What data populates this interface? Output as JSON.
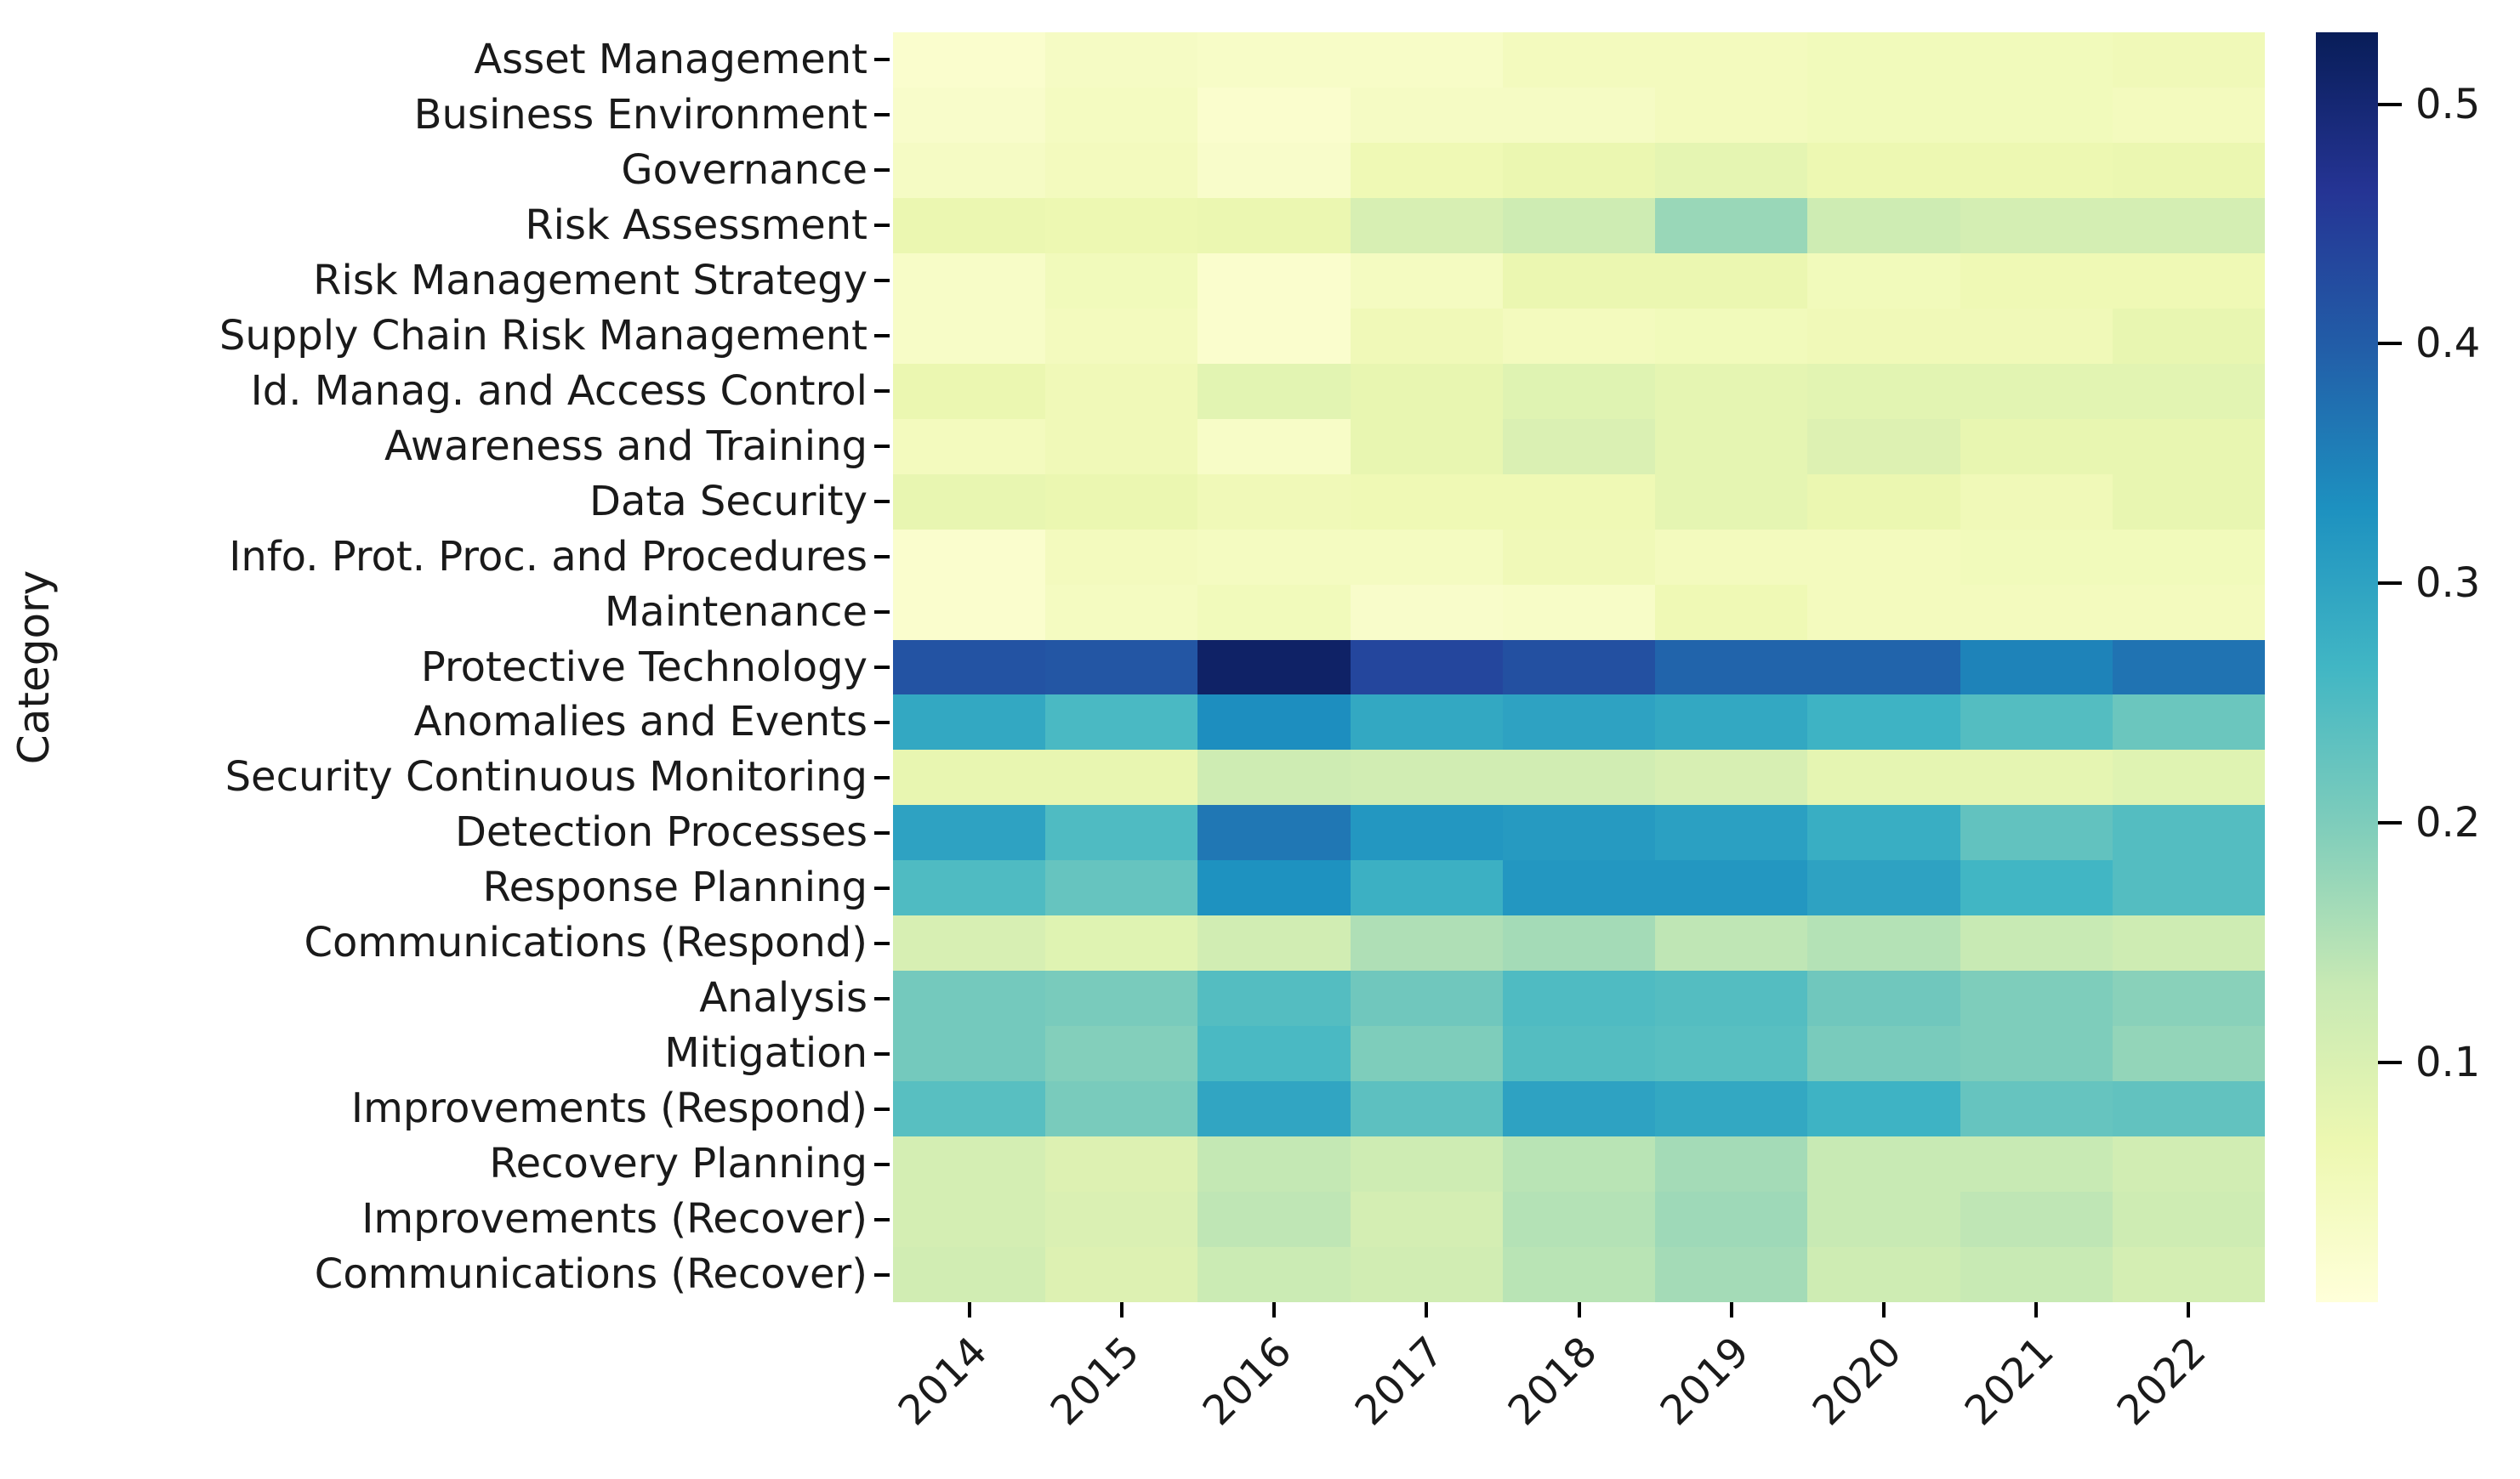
{
  "chart_data": {
    "type": "heatmap",
    "title": "",
    "xlabel": "",
    "ylabel": "Category",
    "grid": false,
    "legend_position": "right-colorbar",
    "colormap": "YlGnBu",
    "colormap_stops": [
      [
        0.0,
        "#ffffd9"
      ],
      [
        0.125,
        "#edf8b1"
      ],
      [
        0.25,
        "#c7e9b4"
      ],
      [
        0.375,
        "#7fcdbb"
      ],
      [
        0.5,
        "#41b6c4"
      ],
      [
        0.625,
        "#1d91c0"
      ],
      [
        0.75,
        "#225ea8"
      ],
      [
        0.875,
        "#253494"
      ],
      [
        1.0,
        "#081d58"
      ]
    ],
    "vmin": 0.0,
    "vmax": 0.53,
    "colorbar_ticks": [
      {
        "label": "0.5",
        "value": 0.5
      },
      {
        "label": "0.4",
        "value": 0.4
      },
      {
        "label": "0.3",
        "value": 0.3
      },
      {
        "label": "0.2",
        "value": 0.2
      },
      {
        "label": "0.1",
        "value": 0.1
      }
    ],
    "x": [
      "2014",
      "2015",
      "2016",
      "2017",
      "2018",
      "2019",
      "2020",
      "2021",
      "2022"
    ],
    "rows": [
      {
        "label": "Asset Management",
        "values": [
          0.02,
          0.035,
          0.03,
          0.03,
          0.045,
          0.045,
          0.05,
          0.05,
          0.055
        ]
      },
      {
        "label": "Business Environment",
        "values": [
          0.025,
          0.04,
          0.02,
          0.035,
          0.035,
          0.045,
          0.05,
          0.05,
          0.045
        ]
      },
      {
        "label": "Governance",
        "values": [
          0.035,
          0.045,
          0.025,
          0.06,
          0.07,
          0.08,
          0.065,
          0.065,
          0.07
        ]
      },
      {
        "label": "Risk Assessment",
        "values": [
          0.07,
          0.065,
          0.07,
          0.105,
          0.12,
          0.175,
          0.12,
          0.11,
          0.11
        ]
      },
      {
        "label": "Risk Management Strategy",
        "values": [
          0.03,
          0.05,
          0.02,
          0.04,
          0.07,
          0.07,
          0.05,
          0.06,
          0.06
        ]
      },
      {
        "label": "Supply Chain Risk Management",
        "values": [
          0.03,
          0.045,
          0.02,
          0.055,
          0.045,
          0.05,
          0.055,
          0.055,
          0.075
        ]
      },
      {
        "label": "Id. Manag. and Access Control",
        "values": [
          0.07,
          0.055,
          0.085,
          0.075,
          0.09,
          0.08,
          0.085,
          0.085,
          0.085
        ]
      },
      {
        "label": "Awareness and Training",
        "values": [
          0.045,
          0.055,
          0.03,
          0.075,
          0.1,
          0.08,
          0.095,
          0.075,
          0.075
        ]
      },
      {
        "label": "Data Security",
        "values": [
          0.075,
          0.07,
          0.055,
          0.06,
          0.06,
          0.08,
          0.07,
          0.055,
          0.075
        ]
      },
      {
        "label": "Info. Prot. Proc. and Procedures",
        "values": [
          0.02,
          0.045,
          0.04,
          0.04,
          0.055,
          0.045,
          0.045,
          0.05,
          0.05
        ]
      },
      {
        "label": "Maintenance",
        "values": [
          0.02,
          0.04,
          0.05,
          0.025,
          0.03,
          0.06,
          0.045,
          0.045,
          0.045
        ]
      },
      {
        "label": "Protective Technology",
        "values": [
          0.415,
          0.41,
          0.515,
          0.435,
          0.42,
          0.39,
          0.39,
          0.35,
          0.37
        ]
      },
      {
        "label": "Anomalies and Events",
        "values": [
          0.29,
          0.255,
          0.335,
          0.29,
          0.3,
          0.29,
          0.27,
          0.245,
          0.22
        ]
      },
      {
        "label": "Security Continuous Monitoring",
        "values": [
          0.075,
          0.075,
          0.12,
          0.115,
          0.115,
          0.105,
          0.08,
          0.08,
          0.09
        ]
      },
      {
        "label": "Detection Processes",
        "values": [
          0.3,
          0.25,
          0.365,
          0.32,
          0.315,
          0.305,
          0.28,
          0.23,
          0.245
        ]
      },
      {
        "label": "Response Planning",
        "values": [
          0.25,
          0.225,
          0.33,
          0.275,
          0.32,
          0.32,
          0.3,
          0.265,
          0.245
        ]
      },
      {
        "label": "Communications (Respond)",
        "values": [
          0.105,
          0.09,
          0.115,
          0.155,
          0.165,
          0.14,
          0.15,
          0.13,
          0.12
        ]
      },
      {
        "label": "Analysis",
        "values": [
          0.21,
          0.205,
          0.245,
          0.215,
          0.25,
          0.245,
          0.215,
          0.2,
          0.19
        ]
      },
      {
        "label": "Mitigation",
        "values": [
          0.21,
          0.195,
          0.255,
          0.2,
          0.245,
          0.24,
          0.205,
          0.2,
          0.18
        ]
      },
      {
        "label": "Improvements (Respond)",
        "values": [
          0.24,
          0.205,
          0.295,
          0.235,
          0.3,
          0.29,
          0.27,
          0.225,
          0.23
        ]
      },
      {
        "label": "Recovery Planning",
        "values": [
          0.11,
          0.095,
          0.135,
          0.12,
          0.145,
          0.165,
          0.13,
          0.13,
          0.115
        ]
      },
      {
        "label": "Improvements (Recover)",
        "values": [
          0.11,
          0.1,
          0.14,
          0.11,
          0.15,
          0.17,
          0.13,
          0.14,
          0.12
        ]
      },
      {
        "label": "Communications (Recover)",
        "values": [
          0.115,
          0.095,
          0.125,
          0.115,
          0.145,
          0.165,
          0.12,
          0.13,
          0.11
        ]
      }
    ]
  }
}
